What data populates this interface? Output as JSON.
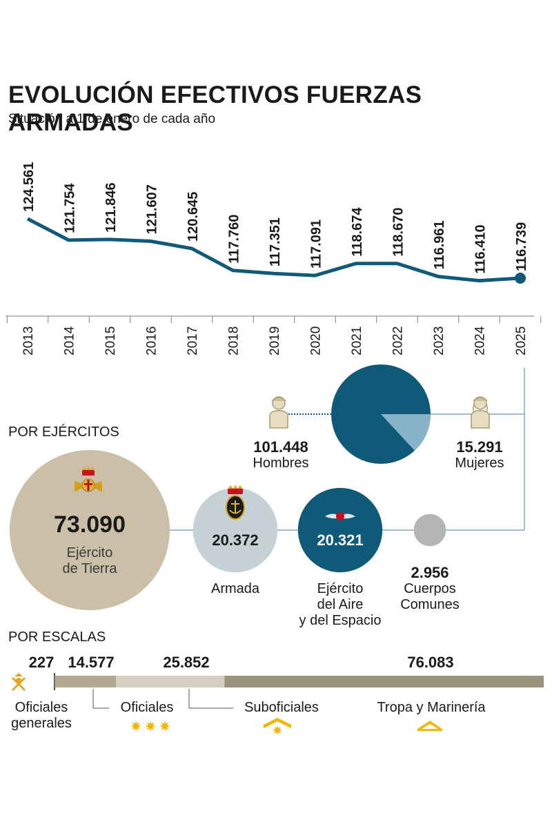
{
  "header": {
    "title": "EVOLUCIÓN EFECTIVOS FUERZAS ARMADAS",
    "subtitle": "Situación a 1 de enero de cada año"
  },
  "chart_data": [
    {
      "type": "line",
      "categories": [
        "2013",
        "2014",
        "2015",
        "2016",
        "2017",
        "2018",
        "2019",
        "2020",
        "2021",
        "2022",
        "2023",
        "2024",
        "2025"
      ],
      "values": [
        124561,
        121754,
        121846,
        121607,
        120645,
        117760,
        117351,
        117091,
        118674,
        118670,
        116961,
        116410,
        116739
      ],
      "value_labels": [
        "124.561",
        "121.754",
        "121.846",
        "121.607",
        "120.645",
        "117.760",
        "117.351",
        "117.091",
        "118.674",
        "118.670",
        "116.961",
        "116.410",
        "116.739"
      ],
      "color": "#0e5a78"
    },
    {
      "type": "pie",
      "slices": [
        {
          "name": "Hombres",
          "value": 101448,
          "label": "101.448",
          "color": "#0e5a78"
        },
        {
          "name": "Mujeres",
          "value": 15291,
          "label": "15.291",
          "color": "#88b3c9"
        }
      ]
    },
    {
      "type": "bar",
      "title": "POR EJÉRCITOS",
      "items": [
        {
          "value": 73090,
          "label": "73.090",
          "name_lines": [
            "Ejército",
            "de Tierra"
          ],
          "color": "#cbbfa8",
          "icon": "army-emblem-icon"
        },
        {
          "value": 20372,
          "label": "20.372",
          "name_lines": [
            "Armada"
          ],
          "color": "#c5d1d5",
          "icon": "navy-anchor-icon"
        },
        {
          "value": 20321,
          "label": "20.321",
          "name_lines": [
            "Ejército",
            "del Aire",
            "y del Espacio"
          ],
          "color": "#0e5a78",
          "icon": "air-force-wings-icon"
        },
        {
          "value": 2956,
          "label": "2.956",
          "name_lines": [
            "Cuerpos",
            "Comunes"
          ],
          "color": "#b5b5b5"
        }
      ]
    },
    {
      "type": "bar",
      "title": "POR ESCALAS",
      "items": [
        {
          "value": 227,
          "label": "227",
          "name_lines": [
            "Oficiales",
            "generales"
          ],
          "color": "#4a4a4a",
          "icon": "general-insignia-icon"
        },
        {
          "value": 14577,
          "label": "14.577",
          "name_lines": [
            "Oficiales"
          ],
          "color": "#b3a890",
          "icon": "three-stars-icon"
        },
        {
          "value": 25852,
          "label": "25.852",
          "name_lines": [
            "Suboficiales"
          ],
          "color": "#d6cfbf",
          "icon": "chevron-star-icon"
        },
        {
          "value": 76083,
          "label": "76.083",
          "name_lines": [
            "Tropa y Marinería"
          ],
          "color": "#9a927d",
          "icon": "chevron-icon"
        }
      ]
    }
  ]
}
